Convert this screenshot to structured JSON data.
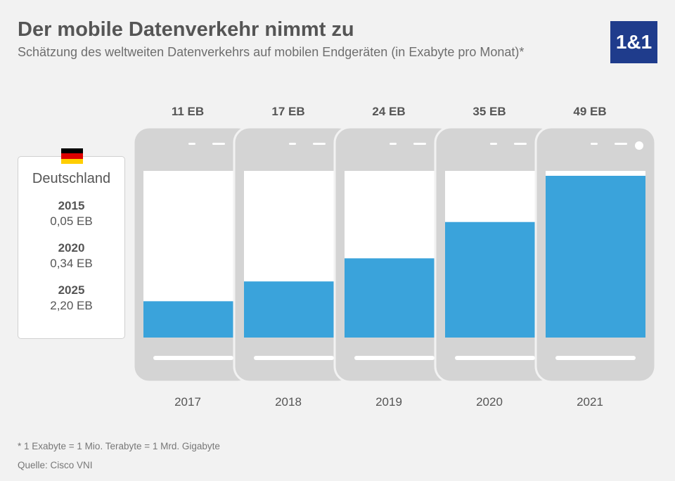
{
  "header": {
    "title": "Der mobile Datenverkehr nimmt zu",
    "subtitle": "Schätzung des weltweiten Datenverkehrs auf mobilen Endgeräten (in Exabyte pro Monat)*"
  },
  "logo": {
    "text": "1&1",
    "color": "#1f3c8c"
  },
  "germany": {
    "flag_icon": "germany-flag-icon",
    "title": "Deutschland",
    "entries": [
      {
        "year": "2015",
        "value": "0,05 EB"
      },
      {
        "year": "2020",
        "value": "0,34 EB"
      },
      {
        "year": "2025",
        "value": "2,20 EB"
      }
    ]
  },
  "chart_data": {
    "type": "bar",
    "title": "Der mobile Datenverkehr nimmt zu",
    "subtitle": "Schätzung des weltweiten Datenverkehrs auf mobilen Endgeräten (in Exabyte pro Monat)*",
    "categories": [
      "2017",
      "2018",
      "2019",
      "2020",
      "2021"
    ],
    "values": [
      11,
      17,
      24,
      35,
      49
    ],
    "value_labels": [
      "11 EB",
      "17 EB",
      "24 EB",
      "35 EB",
      "49 EB"
    ],
    "unit": "EB",
    "ylim": [
      0,
      49
    ],
    "bar_color": "#3aa3db",
    "phone_color": "#d4d4d4"
  },
  "footer": {
    "footnote": "* 1 Exabyte = 1 Mio. Terabyte = 1 Mrd. Gigabyte",
    "source": "Quelle: Cisco VNI"
  }
}
